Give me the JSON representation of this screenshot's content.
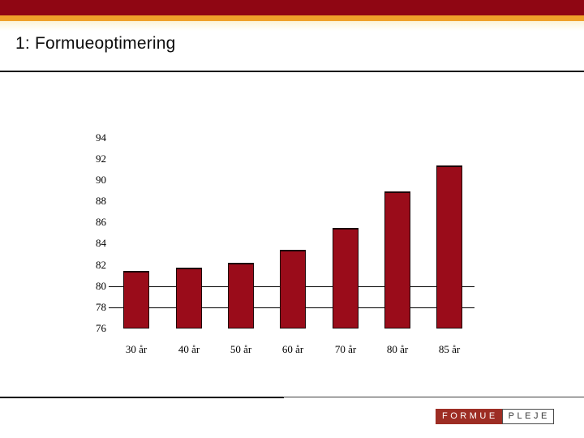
{
  "header": {
    "title": "1: Formueoptimering"
  },
  "colors": {
    "top_bar": "#8f0613",
    "accent_stripe": "#efa12a",
    "bar": "#9a0c1a",
    "logo_red": "#9d2d24"
  },
  "chart_data": {
    "type": "bar",
    "categories": [
      "30 år",
      "40 år",
      "50 år",
      "60 år",
      "70 år",
      "80 år",
      "85 år"
    ],
    "values": [
      81.4,
      81.7,
      82.2,
      83.4,
      85.5,
      88.9,
      91.4
    ],
    "title": "",
    "xlabel": "",
    "ylabel": "",
    "ylim": [
      76,
      94
    ],
    "yticks": [
      76,
      78,
      80,
      82,
      84,
      86,
      88,
      90,
      92,
      94
    ],
    "reference_lines": [
      78,
      80
    ],
    "grid": false,
    "legend": "none",
    "bar_color": "#9a0c1a"
  },
  "footer": {
    "logo": {
      "formue": "FORMUE",
      "pleje": "PLEJE"
    }
  }
}
